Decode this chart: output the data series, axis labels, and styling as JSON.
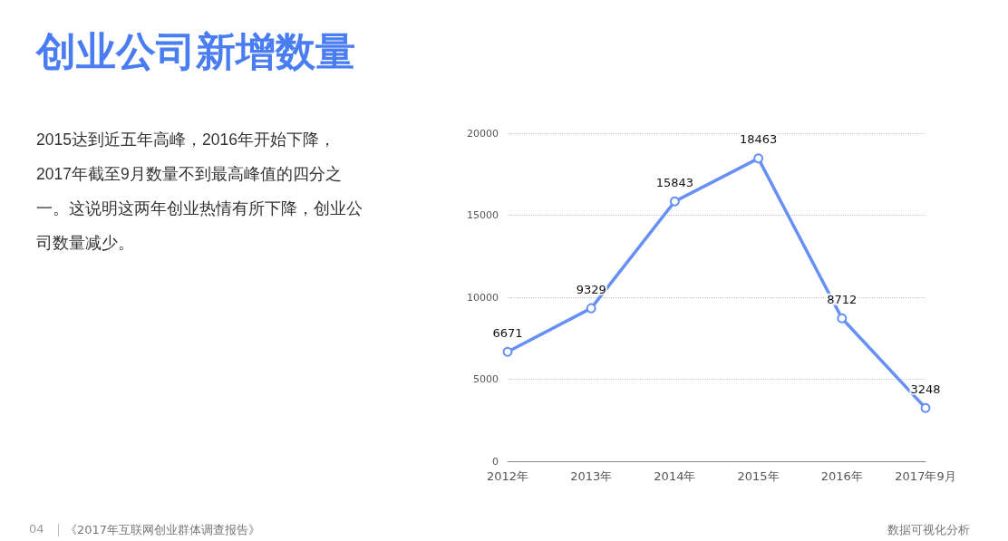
{
  "chart_data": {
    "type": "line",
    "title": "创业公司新增数量",
    "annotations": [
      "2015达到近五年高峰，2016年开始下降，2017年截至9月数量不到最高峰值的四分之一。这说明这两年创业热情有所下降，创业公司数量减少。",
      "04",
      "《2017年互联网创业群体调查报告》",
      "数据可视化分析"
    ],
    "categories": [
      "2012年",
      "2013年",
      "2014年",
      "2015年",
      "2016年",
      "2017年9月"
    ],
    "series": [
      {
        "color": "#6690f6",
        "values": [
          6671,
          9329,
          15843,
          18463,
          8712,
          3248
        ]
      }
    ],
    "ylim": [
      0,
      20000
    ],
    "yticks": [
      0,
      5000,
      10000,
      15000,
      20000
    ],
    "grid": "y",
    "marker": "circle",
    "line_style": "solid",
    "data_labels": true
  }
}
